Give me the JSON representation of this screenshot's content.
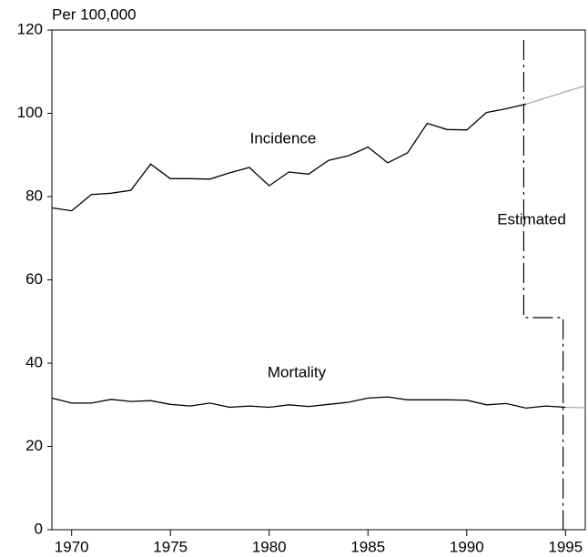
{
  "chart_data": {
    "type": "line",
    "y_label": "Per 100,000",
    "x": [
      1969,
      1970,
      1971,
      1972,
      1973,
      1974,
      1975,
      1976,
      1977,
      1978,
      1979,
      1980,
      1981,
      1982,
      1983,
      1984,
      1985,
      1986,
      1987,
      1988,
      1989,
      1990,
      1991,
      1992,
      1993,
      1994,
      1995,
      1996
    ],
    "series": [
      {
        "name": "Incidence",
        "color": "#000000",
        "estimated_color": "#aaaaaa",
        "values": [
          77.3,
          76.6,
          80.5,
          80.8,
          81.5,
          87.8,
          84.3,
          84.3,
          84.2,
          85.7,
          87.0,
          82.6,
          85.9,
          85.4,
          88.7,
          89.8,
          91.9,
          88.1,
          90.5,
          97.6,
          96.1,
          96.0,
          100.2,
          101.1,
          102.2,
          null,
          null,
          null
        ],
        "estimated_values": [
          null,
          null,
          null,
          null,
          null,
          null,
          null,
          null,
          null,
          null,
          null,
          null,
          null,
          null,
          null,
          null,
          null,
          null,
          null,
          null,
          null,
          null,
          null,
          null,
          102.2,
          103.7,
          105.2,
          106.6
        ]
      },
      {
        "name": "Mortality",
        "color": "#000000",
        "estimated_color": "#aaaaaa",
        "values": [
          31.6,
          30.4,
          30.4,
          31.3,
          30.8,
          31.0,
          30.1,
          29.7,
          30.4,
          29.4,
          29.7,
          29.4,
          30.0,
          29.6,
          30.1,
          30.6,
          31.6,
          31.9,
          31.2,
          31.2,
          31.2,
          31.1,
          30.0,
          30.3,
          29.2,
          29.7,
          29.4,
          null
        ],
        "estimated_values": [
          null,
          null,
          null,
          null,
          null,
          null,
          null,
          null,
          null,
          null,
          null,
          null,
          null,
          null,
          null,
          null,
          null,
          null,
          null,
          null,
          null,
          null,
          null,
          null,
          null,
          null,
          29.4,
          29.3
        ]
      }
    ],
    "annotation": "Estimated",
    "xlim": [
      1969,
      1996
    ],
    "xticks": [
      1970,
      1975,
      1980,
      1985,
      1990,
      1995
    ],
    "ylim": [
      0,
      120
    ],
    "yticks": [
      0,
      20,
      40,
      60,
      80,
      100,
      120
    ]
  }
}
